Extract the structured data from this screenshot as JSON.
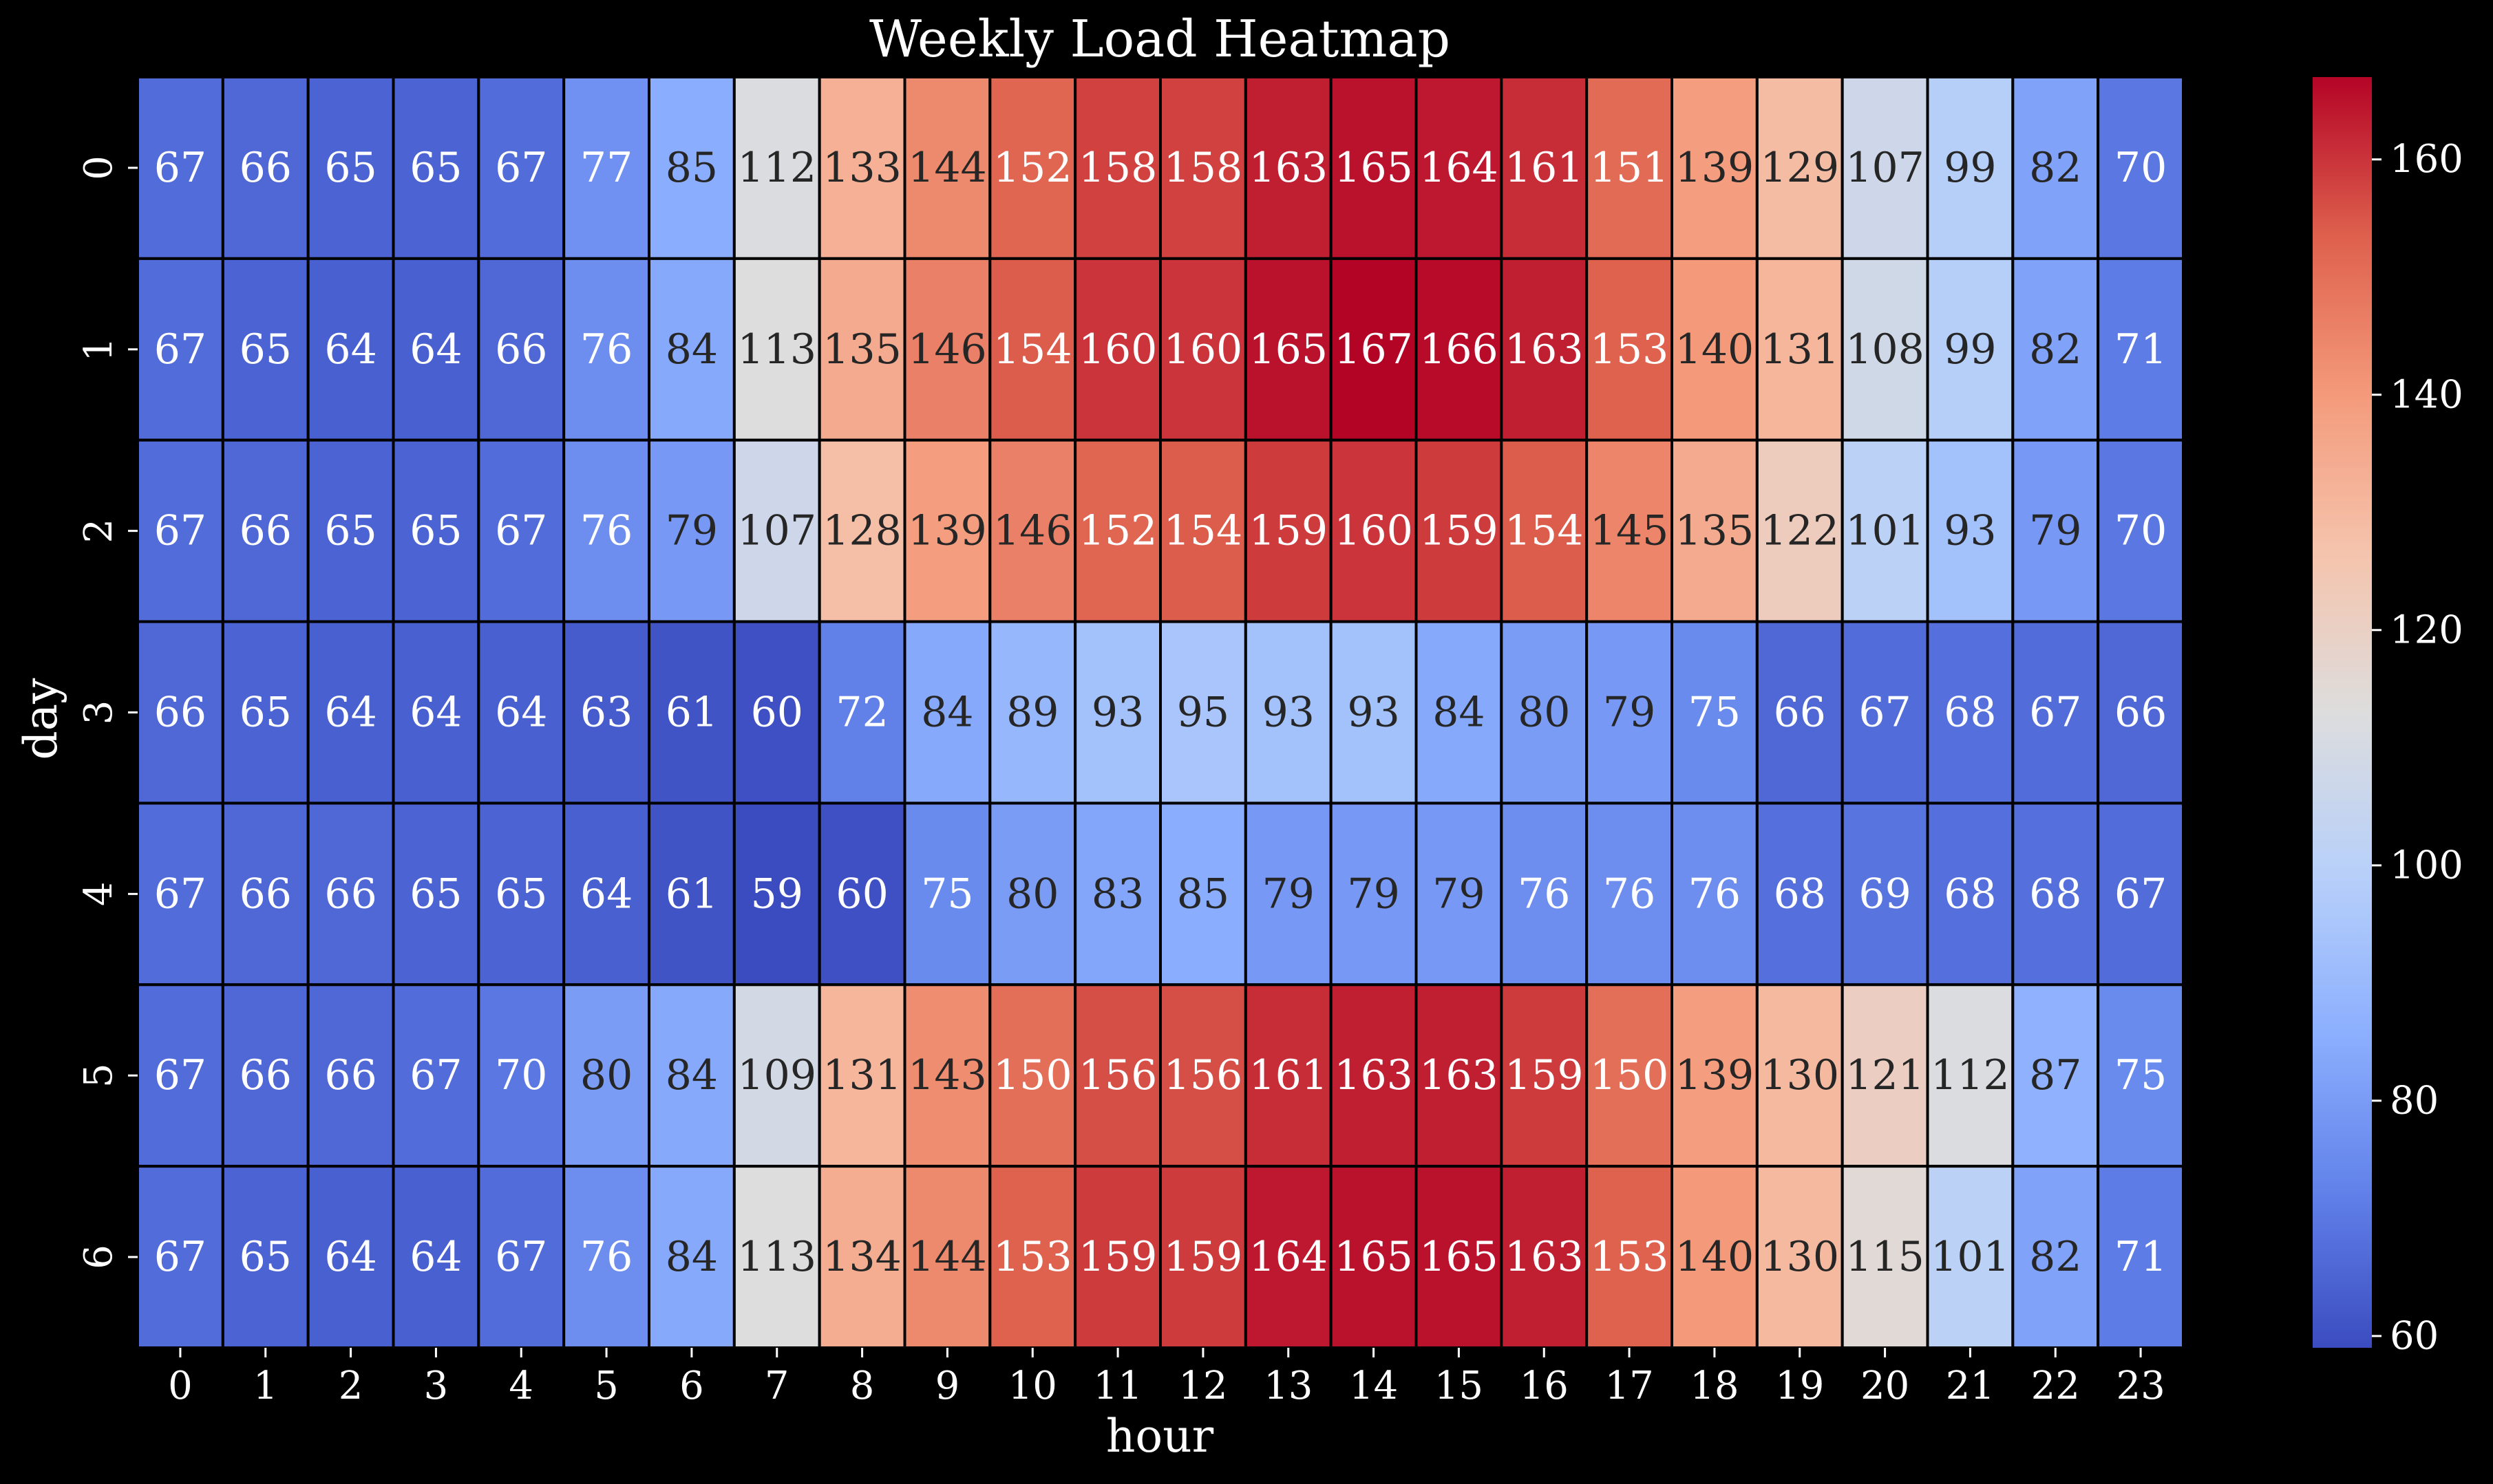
{
  "chart_data": {
    "type": "heatmap",
    "title": "Weekly Load Heatmap",
    "xlabel": "hour",
    "ylabel": "day",
    "x_categories": [
      "0",
      "1",
      "2",
      "3",
      "4",
      "5",
      "6",
      "7",
      "8",
      "9",
      "10",
      "11",
      "12",
      "13",
      "14",
      "15",
      "16",
      "17",
      "18",
      "19",
      "20",
      "21",
      "22",
      "23"
    ],
    "y_categories": [
      "0",
      "1",
      "2",
      "3",
      "4",
      "5",
      "6"
    ],
    "values": [
      [
        67,
        66,
        65,
        65,
        67,
        77,
        85,
        112,
        133,
        144,
        152,
        158,
        158,
        163,
        165,
        164,
        161,
        151,
        139,
        129,
        107,
        99,
        82,
        70
      ],
      [
        67,
        65,
        64,
        64,
        66,
        76,
        84,
        113,
        135,
        146,
        154,
        160,
        160,
        165,
        167,
        166,
        163,
        153,
        140,
        131,
        108,
        99,
        82,
        71
      ],
      [
        67,
        66,
        65,
        65,
        67,
        76,
        79,
        107,
        128,
        139,
        146,
        152,
        154,
        159,
        160,
        159,
        154,
        145,
        135,
        122,
        101,
        93,
        79,
        70
      ],
      [
        66,
        65,
        64,
        64,
        64,
        63,
        61,
        60,
        72,
        84,
        89,
        93,
        95,
        93,
        93,
        84,
        80,
        79,
        75,
        66,
        67,
        68,
        67,
        66
      ],
      [
        67,
        66,
        66,
        65,
        65,
        64,
        61,
        59,
        60,
        75,
        80,
        83,
        85,
        79,
        79,
        79,
        76,
        76,
        76,
        68,
        69,
        68,
        68,
        67
      ],
      [
        67,
        66,
        66,
        67,
        70,
        80,
        84,
        109,
        131,
        143,
        150,
        156,
        156,
        161,
        163,
        163,
        159,
        150,
        139,
        130,
        121,
        112,
        87,
        75
      ],
      [
        67,
        65,
        64,
        64,
        67,
        76,
        84,
        113,
        134,
        144,
        153,
        159,
        159,
        164,
        165,
        165,
        163,
        153,
        140,
        130,
        115,
        101,
        82,
        71
      ]
    ],
    "colormap": "coolwarm",
    "colorbar": {
      "range": [
        59,
        167
      ],
      "ticks": [
        60,
        80,
        100,
        120,
        140,
        160
      ]
    },
    "annotations": true,
    "colors": {
      "background": "#000000",
      "text": "#ffffff",
      "cell_border": "#000000",
      "annotation_dark_text": "#262626",
      "annotation_light_text": "#ffffff"
    }
  }
}
